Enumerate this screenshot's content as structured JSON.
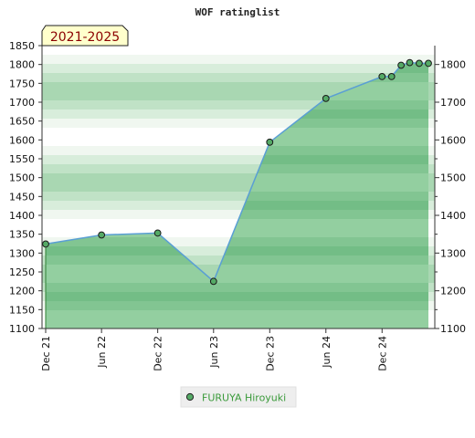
{
  "chart_data": {
    "type": "area",
    "title": "WOF ratinglist",
    "period_label": "2021-2025",
    "xlabel": "",
    "ylabel": "",
    "ylim": [
      1100,
      1850
    ],
    "y_ticks_left": [
      1100,
      1150,
      1200,
      1250,
      1300,
      1350,
      1400,
      1450,
      1500,
      1550,
      1600,
      1650,
      1700,
      1750,
      1800,
      1850
    ],
    "y_ticks_right": [
      1100,
      1200,
      1300,
      1400,
      1500,
      1600,
      1700,
      1800
    ],
    "x_start": "2021-12-01",
    "x_end": "2025-05-01",
    "x_ticks": [
      {
        "date": "2021-12-01",
        "label": "Dec 21"
      },
      {
        "date": "2022-06-01",
        "label": "Jun 22"
      },
      {
        "date": "2022-12-01",
        "label": "Dec 22"
      },
      {
        "date": "2023-06-01",
        "label": "Jun 23"
      },
      {
        "date": "2023-12-01",
        "label": "Dec 23"
      },
      {
        "date": "2024-06-01",
        "label": "Jun 24"
      },
      {
        "date": "2024-12-01",
        "label": "Dec 24"
      }
    ],
    "grid": true,
    "legend_position": "bottom-center",
    "series": [
      {
        "name": "FURUYA Hiroyuki",
        "color": "#5a9fd4",
        "fill_color": "#66bb77",
        "marker_color": "#55aa66",
        "points": [
          {
            "date": "2021-12-01",
            "value": 1324
          },
          {
            "date": "2022-06-01",
            "value": 1348
          },
          {
            "date": "2022-12-01",
            "value": 1353
          },
          {
            "date": "2023-06-01",
            "value": 1225
          },
          {
            "date": "2023-12-01",
            "value": 1594
          },
          {
            "date": "2024-06-01",
            "value": 1710
          },
          {
            "date": "2024-12-01",
            "value": 1768
          },
          {
            "date": "2025-01-01",
            "value": 1768
          },
          {
            "date": "2025-02-01",
            "value": 1798
          },
          {
            "date": "2025-03-01",
            "value": 1805
          },
          {
            "date": "2025-04-01",
            "value": 1803
          },
          {
            "date": "2025-05-01",
            "value": 1803
          }
        ]
      }
    ]
  }
}
